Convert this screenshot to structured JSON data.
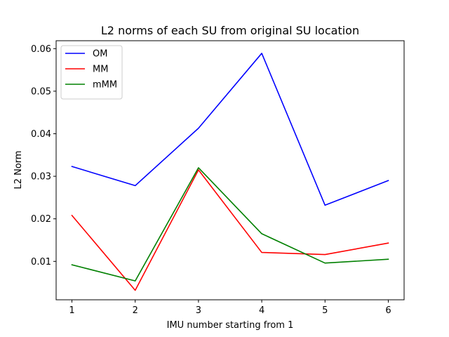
{
  "chart_data": {
    "type": "line",
    "title": "L2 norms of each SU from original SU location",
    "xlabel": "IMU number starting from 1",
    "ylabel": "L2 Norm",
    "x": [
      1,
      2,
      3,
      4,
      5,
      6
    ],
    "xlim": [
      0.75,
      6.25
    ],
    "ylim": [
      0.00097,
      0.06186
    ],
    "xticks": [
      1,
      2,
      3,
      4,
      5,
      6
    ],
    "yticks": [
      0.01,
      0.02,
      0.03,
      0.04,
      0.05,
      0.06
    ],
    "ytick_labels": [
      "0.01",
      "0.02",
      "0.03",
      "0.04",
      "0.05",
      "0.06"
    ],
    "grid": false,
    "legend_position": "top-left",
    "series": [
      {
        "name": "OM",
        "color": "#0000ff",
        "values": [
          0.0323,
          0.0278,
          0.0413,
          0.0589,
          0.0232,
          0.029
        ]
      },
      {
        "name": "MM",
        "color": "#ff0000",
        "values": [
          0.0208,
          0.0032,
          0.0315,
          0.0121,
          0.0116,
          0.0143
        ]
      },
      {
        "name": "mMM",
        "color": "#008000",
        "values": [
          0.0092,
          0.0054,
          0.032,
          0.0165,
          0.0096,
          0.0105
        ]
      }
    ]
  }
}
